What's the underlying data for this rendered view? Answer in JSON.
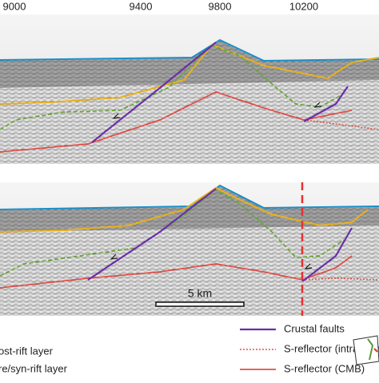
{
  "top_axis": {
    "ticks": [
      "9000",
      "9400",
      "9800",
      "10200"
    ]
  },
  "scale_bar": {
    "label": "5 km"
  },
  "legend": {
    "left": [
      "ost-rift layer",
      "re/syn-rift layer"
    ],
    "right": [
      "Crustal faults",
      "S-reflector (intracrustal)",
      "S-reflector (CMB)"
    ]
  }
}
